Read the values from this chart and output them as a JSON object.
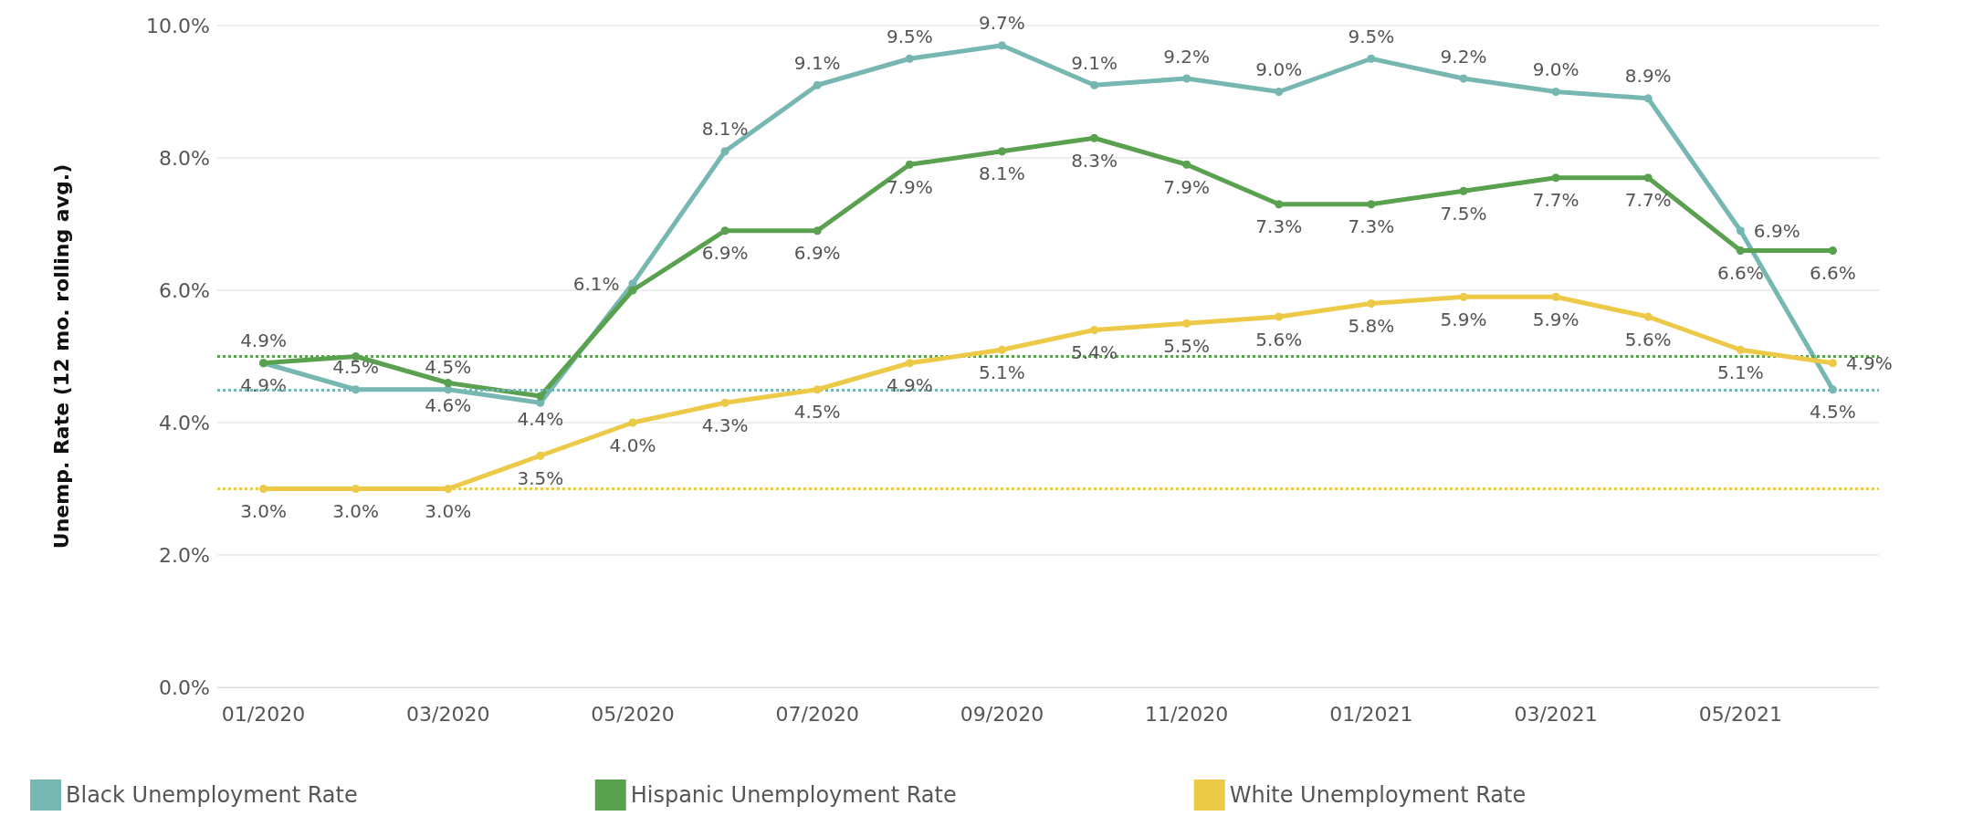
{
  "chart_data": {
    "type": "line",
    "ylabel": "Unemp. Rate (12 mo. rolling avg.)",
    "categories": [
      "01/2020",
      null,
      "03/2020",
      null,
      "05/2020",
      null,
      "07/2020",
      null,
      "09/2020",
      null,
      "11/2020",
      null,
      "01/2021",
      null,
      "03/2021",
      null,
      "05/2021",
      null
    ],
    "series": [
      {
        "name": "Black Unemployment Rate",
        "color": "#76b7b2",
        "values": [
          4.9,
          4.5,
          4.5,
          4.3,
          6.1,
          8.1,
          9.1,
          9.5,
          9.7,
          9.1,
          9.2,
          9.0,
          9.5,
          9.2,
          9.0,
          8.9,
          6.9,
          4.5
        ],
        "value_labels": [
          "4.9%",
          "4.5%",
          "4.5%",
          null,
          "6.1%",
          "8.1%",
          "9.1%",
          "9.5%",
          "9.7%",
          "9.1%",
          "9.2%",
          "9.0%",
          "9.5%",
          "9.2%",
          "9.0%",
          "8.9%",
          "6.9%",
          "4.5%"
        ]
      },
      {
        "name": "Hispanic Unemployment Rate",
        "color": "#59a14f",
        "values": [
          4.9,
          5.0,
          4.6,
          4.4,
          6.0,
          6.9,
          6.9,
          7.9,
          8.1,
          8.3,
          7.9,
          7.3,
          7.3,
          7.5,
          7.7,
          7.7,
          6.6,
          6.6
        ],
        "value_labels": [
          "4.9%",
          null,
          "4.6%",
          "4.4%",
          null,
          "6.9%",
          "6.9%",
          "7.9%",
          "8.1%",
          "8.3%",
          "7.9%",
          "7.3%",
          "7.3%",
          "7.5%",
          "7.7%",
          "7.7%",
          "6.6%",
          "6.6%"
        ]
      },
      {
        "name": "White Unemployment Rate",
        "color": "#edc948",
        "values": [
          3.0,
          3.0,
          3.0,
          3.5,
          4.0,
          4.3,
          4.5,
          4.9,
          5.1,
          5.4,
          5.5,
          5.6,
          5.8,
          5.9,
          5.9,
          5.6,
          5.1,
          4.9
        ],
        "value_labels": [
          "3.0%",
          "3.0%",
          "3.0%",
          "3.5%",
          "4.0%",
          "4.3%",
          "4.5%",
          "4.9%",
          "5.1%",
          "5.4%",
          "5.5%",
          "5.6%",
          "5.8%",
          "5.9%",
          "5.9%",
          "5.6%",
          "5.1%",
          "4.9%"
        ]
      }
    ],
    "ref_lines": [
      {
        "axis": "y",
        "value": 5.0,
        "color": "#59a14f",
        "line_style": "dotted"
      },
      {
        "axis": "y",
        "value": 4.5,
        "color": "#76b7b2",
        "line_style": "dotted"
      },
      {
        "axis": "y",
        "value": 3.0,
        "color": "#edc948",
        "line_style": "dotted"
      }
    ],
    "ylim": [
      0,
      10
    ],
    "yticks": [
      {
        "value": 0,
        "label": "0.0%"
      },
      {
        "value": 2,
        "label": "2.0%"
      },
      {
        "value": 4,
        "label": "4.0%"
      },
      {
        "value": 6,
        "label": "6.0%"
      },
      {
        "value": 8,
        "label": "8.0%"
      },
      {
        "value": 10,
        "label": "10.0%"
      }
    ],
    "grid": "y",
    "legend": "bottom",
    "marker": "circle",
    "line_style": "solid"
  }
}
